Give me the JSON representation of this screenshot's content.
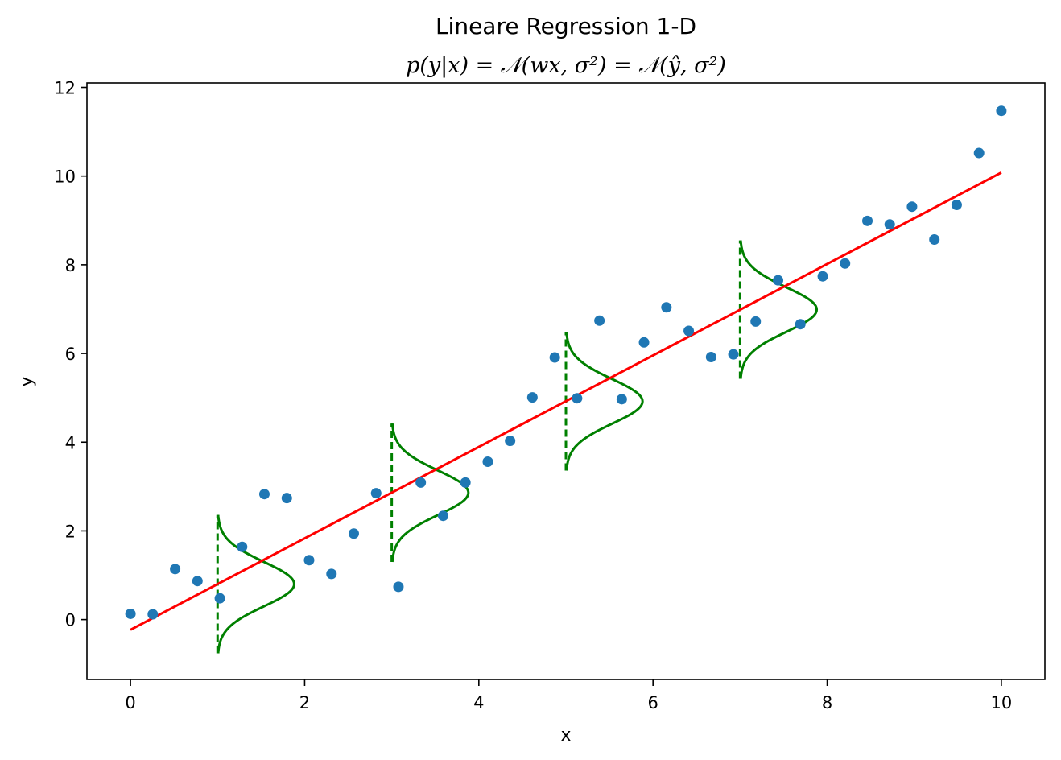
{
  "chart_data": {
    "type": "scatter",
    "title": "Lineare Regression 1-D",
    "subtitle": "p(y|x) = 𝒩(wx, σ²) = 𝒩(ŷ, σ²)",
    "xlabel": "x",
    "ylabel": "y",
    "xlim": [
      -0.5,
      10.5
    ],
    "ylim": [
      -1.35,
      12.1
    ],
    "xticks": [
      0,
      2,
      4,
      6,
      8,
      10
    ],
    "yticks": [
      0,
      2,
      4,
      6,
      8,
      10,
      12
    ],
    "grid": false,
    "colors": {
      "points": "#1f77b4",
      "regression": "#ff0000",
      "densities": "#008000"
    },
    "points": {
      "x": [
        0.0,
        0.256,
        0.513,
        0.769,
        1.026,
        1.282,
        1.538,
        1.795,
        2.051,
        2.308,
        2.564,
        2.821,
        3.077,
        3.333,
        3.59,
        3.846,
        4.103,
        4.359,
        4.615,
        4.872,
        5.128,
        5.385,
        5.641,
        5.897,
        6.154,
        6.41,
        6.667,
        6.923,
        7.179,
        7.436,
        7.692,
        7.949,
        8.205,
        8.462,
        8.718,
        8.974,
        9.231,
        9.487,
        9.744,
        10.0
      ],
      "y": [
        0.13,
        0.12,
        1.14,
        0.87,
        0.48,
        1.64,
        2.83,
        2.74,
        1.34,
        1.03,
        1.94,
        2.85,
        0.74,
        3.09,
        2.34,
        3.09,
        3.56,
        4.03,
        5.01,
        5.91,
        4.99,
        6.74,
        4.97,
        6.25,
        7.04,
        6.51,
        5.92,
        5.98,
        6.72,
        7.65,
        6.66,
        7.74,
        8.03,
        8.99,
        8.91,
        9.31,
        8.57,
        9.35,
        10.52,
        11.47
      ]
    },
    "regression_line": {
      "x": [
        0,
        10
      ],
      "y": [
        -0.23,
        10.08
      ]
    },
    "conditional_densities": {
      "x": [
        1,
        3,
        5,
        7
      ],
      "mean": [
        0.8,
        2.86,
        4.92,
        6.99
      ],
      "sigma": 0.5,
      "half_range": 1.56,
      "peak_width_x": 0.88
    }
  }
}
